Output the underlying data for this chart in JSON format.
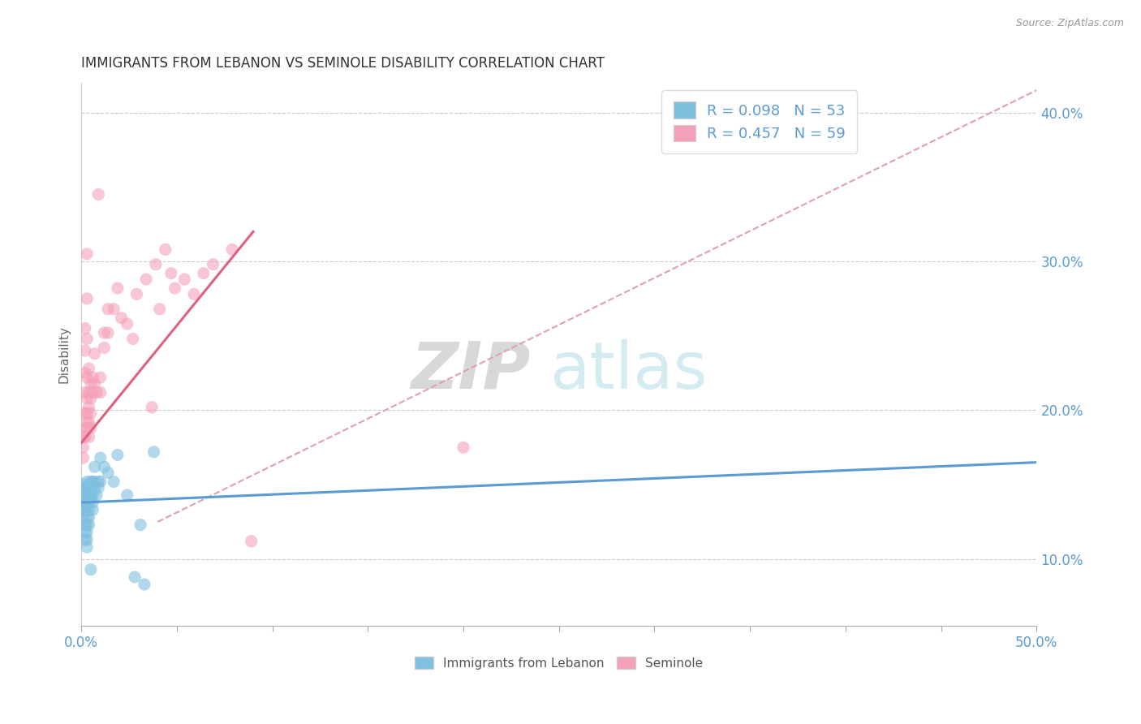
{
  "title": "IMMIGRANTS FROM LEBANON VS SEMINOLE DISABILITY CORRELATION CHART",
  "source": "Source: ZipAtlas.com",
  "watermark_zip": "ZIP",
  "watermark_atlas": "atlas",
  "xlabel": "",
  "ylabel": "Disability",
  "xlim": [
    0.0,
    0.5
  ],
  "ylim": [
    0.055,
    0.42
  ],
  "xticks": [
    0.0,
    0.05,
    0.1,
    0.15,
    0.2,
    0.25,
    0.3,
    0.35,
    0.4,
    0.45,
    0.5
  ],
  "yticks_right": [
    0.1,
    0.2,
    0.3,
    0.4
  ],
  "yticklabels_right": [
    "10.0%",
    "20.0%",
    "30.0%",
    "40.0%"
  ],
  "legend_r1": "R = 0.098",
  "legend_n1": "N = 53",
  "legend_r2": "R = 0.457",
  "legend_n2": "N = 59",
  "blue_color": "#7fbfdf",
  "pink_color": "#f4a0b8",
  "blue_line_color": "#5b9bd5",
  "pink_line_color": "#e06080",
  "trendline_dash_color": "#e0a0b0",
  "blue_scatter": [
    [
      0.001,
      0.15
    ],
    [
      0.001,
      0.143
    ],
    [
      0.001,
      0.138
    ],
    [
      0.001,
      0.133
    ],
    [
      0.001,
      0.128
    ],
    [
      0.002,
      0.148
    ],
    [
      0.002,
      0.143
    ],
    [
      0.002,
      0.138
    ],
    [
      0.002,
      0.133
    ],
    [
      0.002,
      0.123
    ],
    [
      0.002,
      0.118
    ],
    [
      0.002,
      0.113
    ],
    [
      0.003,
      0.152
    ],
    [
      0.003,
      0.148
    ],
    [
      0.003,
      0.143
    ],
    [
      0.003,
      0.138
    ],
    [
      0.003,
      0.133
    ],
    [
      0.003,
      0.128
    ],
    [
      0.003,
      0.123
    ],
    [
      0.003,
      0.118
    ],
    [
      0.003,
      0.113
    ],
    [
      0.003,
      0.108
    ],
    [
      0.004,
      0.148
    ],
    [
      0.004,
      0.143
    ],
    [
      0.004,
      0.138
    ],
    [
      0.004,
      0.133
    ],
    [
      0.004,
      0.128
    ],
    [
      0.004,
      0.123
    ],
    [
      0.005,
      0.152
    ],
    [
      0.005,
      0.148
    ],
    [
      0.005,
      0.143
    ],
    [
      0.005,
      0.093
    ],
    [
      0.006,
      0.152
    ],
    [
      0.006,
      0.143
    ],
    [
      0.006,
      0.138
    ],
    [
      0.006,
      0.133
    ],
    [
      0.007,
      0.162
    ],
    [
      0.007,
      0.152
    ],
    [
      0.007,
      0.148
    ],
    [
      0.008,
      0.143
    ],
    [
      0.009,
      0.152
    ],
    [
      0.009,
      0.148
    ],
    [
      0.01,
      0.168
    ],
    [
      0.01,
      0.152
    ],
    [
      0.012,
      0.162
    ],
    [
      0.014,
      0.158
    ],
    [
      0.017,
      0.152
    ],
    [
      0.019,
      0.17
    ],
    [
      0.024,
      0.143
    ],
    [
      0.028,
      0.088
    ],
    [
      0.031,
      0.123
    ],
    [
      0.033,
      0.083
    ],
    [
      0.038,
      0.172
    ]
  ],
  "pink_scatter": [
    [
      0.001,
      0.182
    ],
    [
      0.001,
      0.175
    ],
    [
      0.001,
      0.168
    ],
    [
      0.002,
      0.255
    ],
    [
      0.002,
      0.24
    ],
    [
      0.002,
      0.225
    ],
    [
      0.002,
      0.212
    ],
    [
      0.002,
      0.198
    ],
    [
      0.002,
      0.188
    ],
    [
      0.002,
      0.182
    ],
    [
      0.003,
      0.305
    ],
    [
      0.003,
      0.275
    ],
    [
      0.003,
      0.248
    ],
    [
      0.003,
      0.222
    ],
    [
      0.003,
      0.208
    ],
    [
      0.003,
      0.198
    ],
    [
      0.003,
      0.192
    ],
    [
      0.003,
      0.188
    ],
    [
      0.004,
      0.228
    ],
    [
      0.004,
      0.212
    ],
    [
      0.004,
      0.202
    ],
    [
      0.004,
      0.192
    ],
    [
      0.004,
      0.182
    ],
    [
      0.005,
      0.218
    ],
    [
      0.005,
      0.208
    ],
    [
      0.005,
      0.198
    ],
    [
      0.005,
      0.188
    ],
    [
      0.006,
      0.222
    ],
    [
      0.006,
      0.212
    ],
    [
      0.007,
      0.238
    ],
    [
      0.007,
      0.218
    ],
    [
      0.008,
      0.212
    ],
    [
      0.009,
      0.345
    ],
    [
      0.01,
      0.222
    ],
    [
      0.01,
      0.212
    ],
    [
      0.012,
      0.252
    ],
    [
      0.012,
      0.242
    ],
    [
      0.014,
      0.268
    ],
    [
      0.014,
      0.252
    ],
    [
      0.017,
      0.268
    ],
    [
      0.019,
      0.282
    ],
    [
      0.021,
      0.262
    ],
    [
      0.024,
      0.258
    ],
    [
      0.027,
      0.248
    ],
    [
      0.029,
      0.278
    ],
    [
      0.034,
      0.288
    ],
    [
      0.037,
      0.202
    ],
    [
      0.039,
      0.298
    ],
    [
      0.041,
      0.268
    ],
    [
      0.044,
      0.308
    ],
    [
      0.047,
      0.292
    ],
    [
      0.049,
      0.282
    ],
    [
      0.054,
      0.288
    ],
    [
      0.059,
      0.278
    ],
    [
      0.064,
      0.292
    ],
    [
      0.069,
      0.298
    ],
    [
      0.079,
      0.308
    ],
    [
      0.089,
      0.112
    ],
    [
      0.2,
      0.175
    ]
  ],
  "blue_trendline_x": [
    0.0,
    0.5
  ],
  "blue_trendline_y": [
    0.138,
    0.165
  ],
  "pink_trendline_x": [
    0.0,
    0.09
  ],
  "pink_trendline_y": [
    0.178,
    0.32
  ],
  "dashed_trendline_x": [
    0.04,
    0.5
  ],
  "dashed_trendline_y": [
    0.125,
    0.415
  ]
}
